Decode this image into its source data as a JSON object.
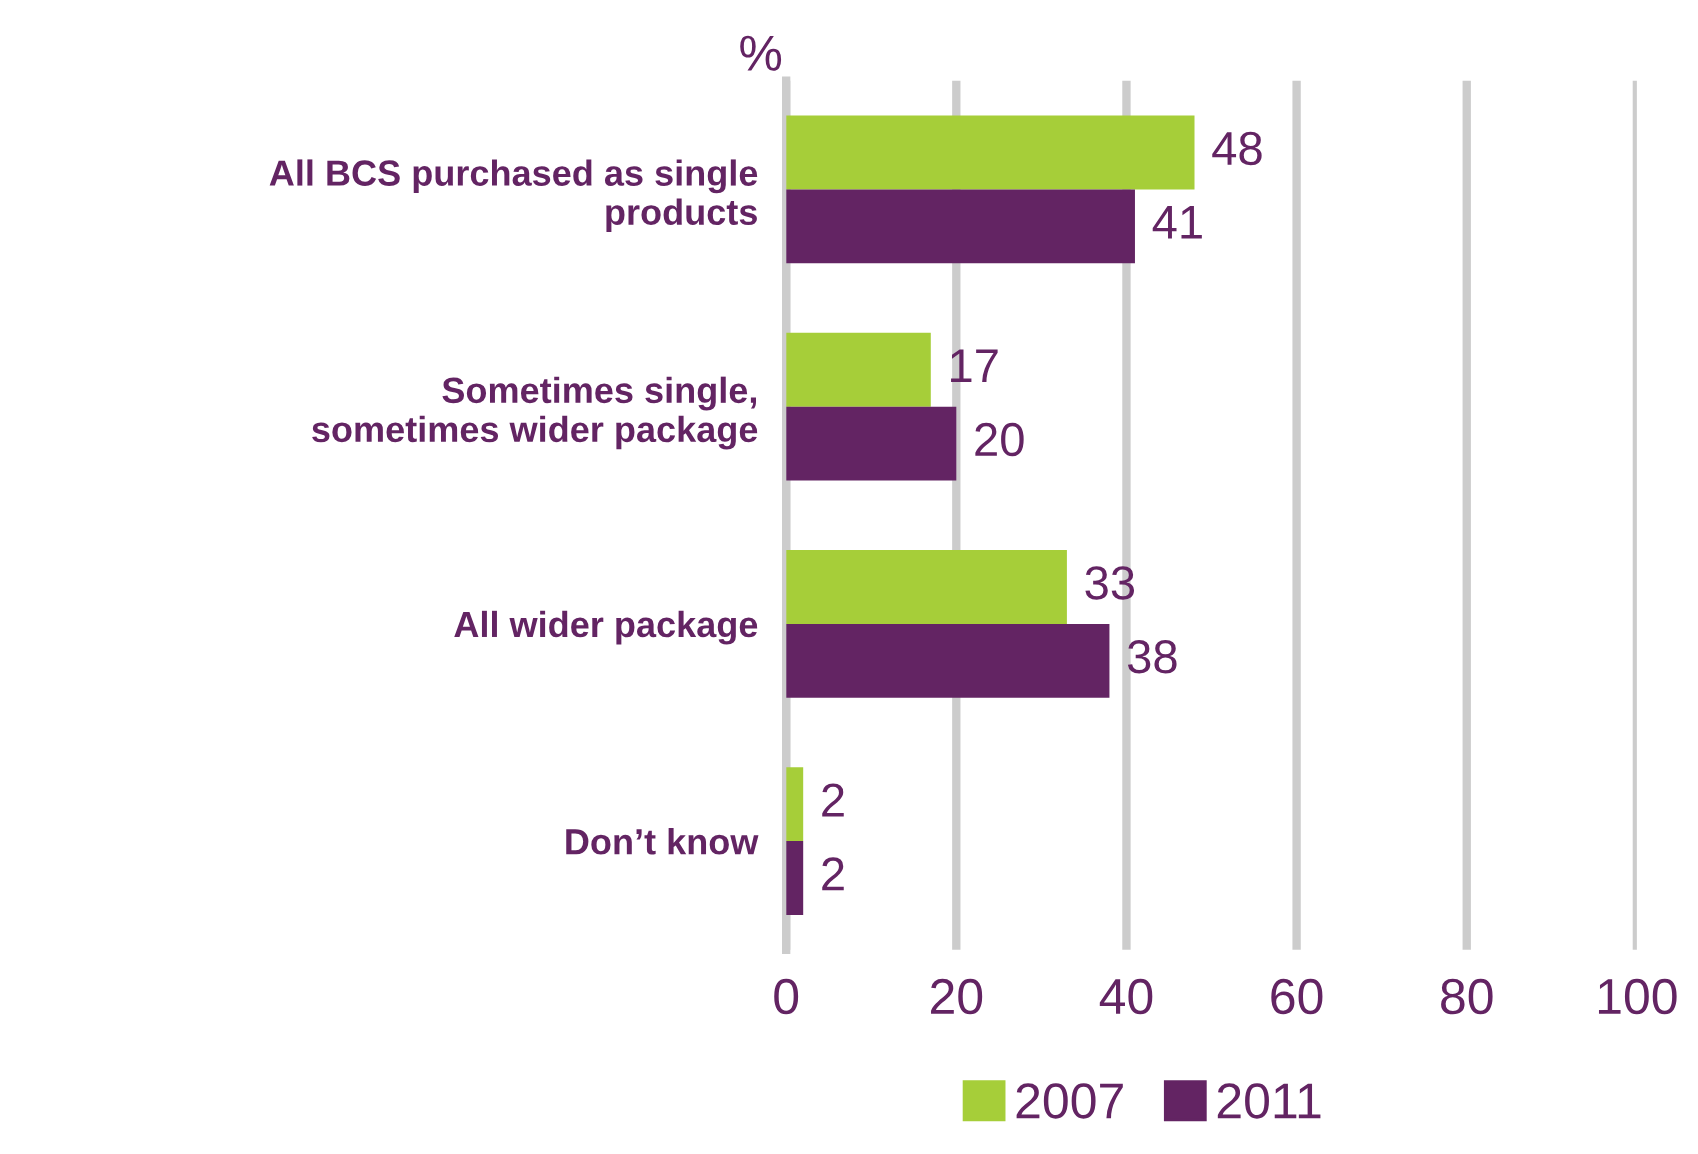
{
  "chart_data": {
    "type": "bar",
    "orientation": "horizontal",
    "xlabel": "%",
    "categories": [
      "All BCS purchased as single\nproducts",
      "Sometimes single,\nsometimes wider package",
      "All wider package",
      "Don’t know"
    ],
    "series": [
      {
        "name": "2007",
        "color": "#a6ce39",
        "values": [
          48,
          17,
          33,
          2
        ]
      },
      {
        "name": "2011",
        "color": "#632463",
        "values": [
          41,
          20,
          38,
          2
        ]
      }
    ],
    "xlim": [
      0,
      100
    ],
    "xticks": [
      0,
      20,
      40,
      60,
      80,
      100
    ],
    "grid": "x",
    "legend": "bottom",
    "data_labels": true
  }
}
